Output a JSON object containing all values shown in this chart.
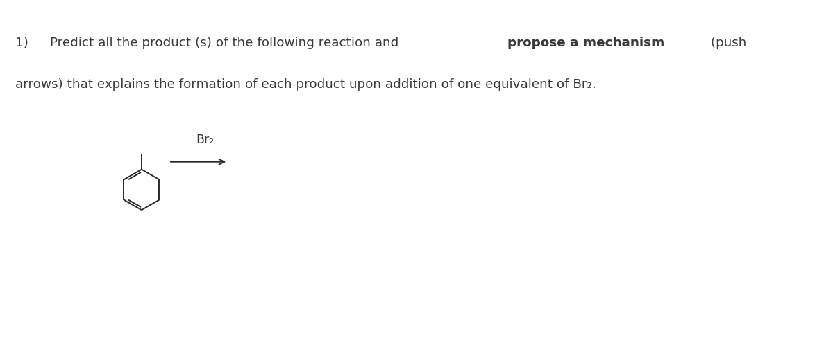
{
  "background_color": "#ffffff",
  "fig_width": 12.0,
  "fig_height": 5.04,
  "dpi": 100,
  "text_color": "#3a3a3a",
  "font_size_text": 13.2,
  "font_size_br2": 12.5,
  "line1_pre_bold": "1)          Predict all the product (s) of the following reaction and ",
  "line1_bold": "propose a mechanism",
  "line1_post_bold": " (push",
  "line2": "arrows) that explains the formation of each product upon addition of one equivalent of Br₂.",
  "br2_label": "Br₂",
  "col": "#2a2a2a"
}
